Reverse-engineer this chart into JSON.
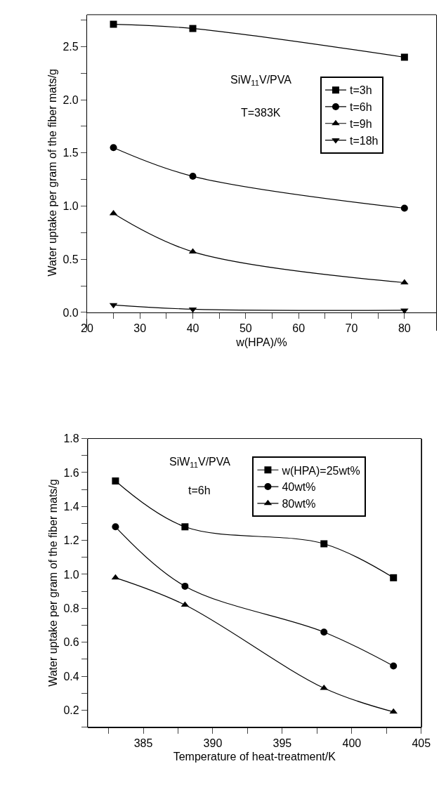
{
  "chart_data": [
    {
      "type": "line",
      "xlabel": "w(HPA)/%",
      "ylabel": "Water uptake per gram of the fiber mats/g",
      "annotations": [
        "SiW$_{11}$V/PVA",
        "T=383K"
      ],
      "x": [
        25,
        40,
        80
      ],
      "series": [
        {
          "name": "t=3h",
          "color": "#000000",
          "marker": "square",
          "values": [
            2.71,
            2.67,
            2.4
          ]
        },
        {
          "name": "t=6h",
          "color": "#000000",
          "marker": "circle",
          "values": [
            1.55,
            1.28,
            0.98
          ]
        },
        {
          "name": "t=9h",
          "color": "#000000",
          "marker": "triangle",
          "values": [
            0.93,
            0.57,
            0.28
          ]
        },
        {
          "name": "t=18h",
          "color": "#000000",
          "marker": "triangle-down",
          "values": [
            0.07,
            0.03,
            0.02
          ]
        }
      ],
      "xlim": [
        20,
        86
      ],
      "xticks": [
        20,
        {
          "value": 25,
          "label": null
        },
        30,
        {
          "value": 35,
          "label": null
        },
        40,
        {
          "value": 45,
          "label": null
        },
        50,
        {
          "value": 55,
          "label": null
        },
        60,
        {
          "value": 65,
          "label": null
        },
        70,
        {
          "value": 75,
          "label": null
        },
        80
      ],
      "ylim": [
        -0.17,
        2.8
      ],
      "yticks": [
        {
          "value": 0,
          "label": "0.0"
        },
        {
          "value": 0.25,
          "label": null
        },
        {
          "value": 0.5,
          "label": "0.5"
        },
        {
          "value": 0.75,
          "label": null
        },
        {
          "value": 1,
          "label": "1.0"
        },
        {
          "value": 1.25,
          "label": null
        },
        {
          "value": 1.5,
          "label": "1.5"
        },
        {
          "value": 1.75,
          "label": null
        },
        {
          "value": 2,
          "label": "2.0"
        },
        {
          "value": 2.25,
          "label": null
        },
        {
          "value": 2.5,
          "label": "2.5"
        },
        {
          "value": 2.75,
          "label": null
        }
      ],
      "legend": "top right",
      "line_style": "solid"
    },
    {
      "type": "line",
      "xlabel": "Temperature of heat-treatment/K",
      "ylabel": "Water uptake per gram of the fiber mats/g",
      "annotations": [
        "SiW$_{11}$V/PVA",
        "t=6h"
      ],
      "x": [
        383,
        388,
        398,
        403
      ],
      "series": [
        {
          "name": "w(HPA)=25wt%",
          "color": "#000000",
          "marker": "square",
          "values": [
            1.55,
            1.28,
            1.18,
            0.98
          ]
        },
        {
          "name": "40wt%",
          "color": "#000000",
          "marker": "circle",
          "values": [
            1.28,
            0.93,
            0.66,
            0.46
          ]
        },
        {
          "name": "80wt%",
          "color": "#000000",
          "marker": "triangle",
          "values": [
            0.98,
            0.82,
            0.33,
            0.19
          ]
        }
      ],
      "xlim": [
        381,
        405
      ],
      "xticks": [
        {
          "value": 382.5,
          "label": null
        },
        385,
        {
          "value": 387.5,
          "label": null
        },
        390,
        {
          "value": 392.5,
          "label": null
        },
        395,
        {
          "value": 397.5,
          "label": null
        },
        400,
        {
          "value": 402.5,
          "label": null
        },
        405
      ],
      "ylim": [
        0.1,
        1.8
      ],
      "yticks": [
        {
          "value": 0.1,
          "label": null
        },
        0.2,
        {
          "value": 0.3,
          "label": null
        },
        0.4,
        {
          "value": 0.5,
          "label": null
        },
        0.6,
        {
          "value": 0.7,
          "label": null
        },
        0.8,
        {
          "value": 0.9,
          "label": null
        },
        {
          "value": 1,
          "label": "1.0"
        },
        {
          "value": 1.1,
          "label": null
        },
        1.2,
        {
          "value": 1.3,
          "label": null
        },
        1.4,
        {
          "value": 1.5,
          "label": null
        },
        1.6,
        {
          "value": 1.7,
          "label": null
        },
        1.8
      ],
      "legend": "top right",
      "line_style": "solid"
    }
  ]
}
